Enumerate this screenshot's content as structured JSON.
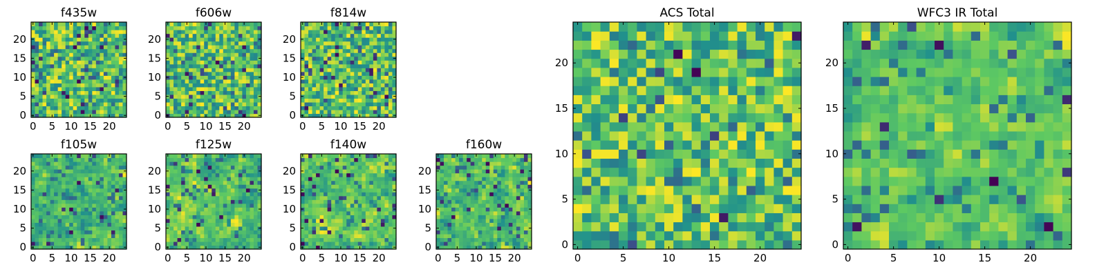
{
  "figure": {
    "background": "#ffffff",
    "colormap": "viridis",
    "colormap_stops": [
      "#440154",
      "#3b528b",
      "#21918c",
      "#5ec962",
      "#fde725"
    ]
  },
  "chart_data": [
    {
      "type": "heatmap",
      "title": "f435w",
      "grid_size": [
        25,
        25
      ],
      "xlim": [
        0,
        24
      ],
      "ylim": [
        0,
        24
      ],
      "xticks": [
        "0",
        "5",
        "10",
        "15",
        "20"
      ],
      "yticks": [
        "0",
        "5",
        "10",
        "15",
        "20"
      ],
      "color_range": [
        0,
        1
      ],
      "seed": 11,
      "smooth": 0,
      "dark_fraction": 0.05,
      "values": "per-pixel noise field, level 0-1 (no printed values)"
    },
    {
      "type": "heatmap",
      "title": "f606w",
      "grid_size": [
        25,
        25
      ],
      "xlim": [
        0,
        24
      ],
      "ylim": [
        0,
        24
      ],
      "xticks": [
        "0",
        "5",
        "10",
        "15",
        "20"
      ],
      "yticks": [
        "0",
        "5",
        "10",
        "15",
        "20"
      ],
      "color_range": [
        0,
        1
      ],
      "seed": 23,
      "smooth": 0,
      "dark_fraction": 0.05,
      "values": "per-pixel noise field, level 0-1 (no printed values)"
    },
    {
      "type": "heatmap",
      "title": "f814w",
      "grid_size": [
        25,
        25
      ],
      "xlim": [
        0,
        24
      ],
      "ylim": [
        0,
        24
      ],
      "xticks": [
        "0",
        "5",
        "10",
        "15",
        "20"
      ],
      "yticks": [
        "0",
        "5",
        "10",
        "15",
        "20"
      ],
      "color_range": [
        0,
        1
      ],
      "seed": 37,
      "smooth": 0,
      "dark_fraction": 0.06,
      "values": "per-pixel noise field, level 0-1 (no printed values)"
    },
    {
      "type": "heatmap",
      "title": "f105w",
      "grid_size": [
        25,
        25
      ],
      "xlim": [
        0,
        24
      ],
      "ylim": [
        0,
        24
      ],
      "xticks": [
        "0",
        "5",
        "10",
        "15",
        "20"
      ],
      "yticks": [
        "0",
        "5",
        "10",
        "15",
        "20"
      ],
      "color_range": [
        0,
        1
      ],
      "seed": 41,
      "smooth": 1,
      "dark_fraction": 0.03,
      "values": "per-pixel noise field, level 0-1 (no printed values)"
    },
    {
      "type": "heatmap",
      "title": "f125w",
      "grid_size": [
        25,
        25
      ],
      "xlim": [
        0,
        24
      ],
      "ylim": [
        0,
        24
      ],
      "xticks": [
        "0",
        "5",
        "10",
        "15",
        "20"
      ],
      "yticks": [
        "0",
        "5",
        "10",
        "15",
        "20"
      ],
      "color_range": [
        0,
        1
      ],
      "seed": 53,
      "smooth": 1,
      "dark_fraction": 0.04,
      "values": "per-pixel noise field, level 0-1 (no printed values)"
    },
    {
      "type": "heatmap",
      "title": "f140w",
      "grid_size": [
        25,
        25
      ],
      "xlim": [
        0,
        24
      ],
      "ylim": [
        0,
        24
      ],
      "xticks": [
        "0",
        "5",
        "10",
        "15",
        "20"
      ],
      "yticks": [
        "0",
        "5",
        "10",
        "15",
        "20"
      ],
      "color_range": [
        0,
        1
      ],
      "seed": 67,
      "smooth": 1,
      "dark_fraction": 0.04,
      "values": "per-pixel noise field, level 0-1 (no printed values)"
    },
    {
      "type": "heatmap",
      "title": "f160w",
      "grid_size": [
        25,
        25
      ],
      "xlim": [
        0,
        24
      ],
      "ylim": [
        0,
        24
      ],
      "xticks": [
        "0",
        "5",
        "10",
        "15",
        "20"
      ],
      "yticks": [
        "0",
        "5",
        "10",
        "15",
        "20"
      ],
      "color_range": [
        0,
        1
      ],
      "seed": 79,
      "smooth": 1,
      "dark_fraction": 0.05,
      "values": "per-pixel noise field, level 0-1 (no printed values)"
    },
    {
      "type": "heatmap",
      "title": "ACS Total",
      "grid_size": [
        25,
        25
      ],
      "xlim": [
        0,
        24
      ],
      "ylim": [
        0,
        24
      ],
      "xticks": [
        "0",
        "5",
        "10",
        "15",
        "20"
      ],
      "yticks": [
        "0",
        "5",
        "10",
        "15",
        "20"
      ],
      "color_range": [
        0,
        1
      ],
      "seed": 97,
      "smooth": 0,
      "dark_fraction": 0.02,
      "values": "per-pixel noise field, level 0-1 (no printed values)"
    },
    {
      "type": "heatmap",
      "title": "WFC3 IR Total",
      "grid_size": [
        25,
        25
      ],
      "xlim": [
        0,
        24
      ],
      "ylim": [
        0,
        24
      ],
      "xticks": [
        "0",
        "5",
        "10",
        "15",
        "20"
      ],
      "yticks": [
        "0",
        "5",
        "10",
        "15",
        "20"
      ],
      "color_range": [
        0,
        1
      ],
      "seed": 113,
      "smooth": 1,
      "dark_fraction": 0.03,
      "values": "per-pixel noise field, level 0-1 (no printed values)"
    }
  ]
}
